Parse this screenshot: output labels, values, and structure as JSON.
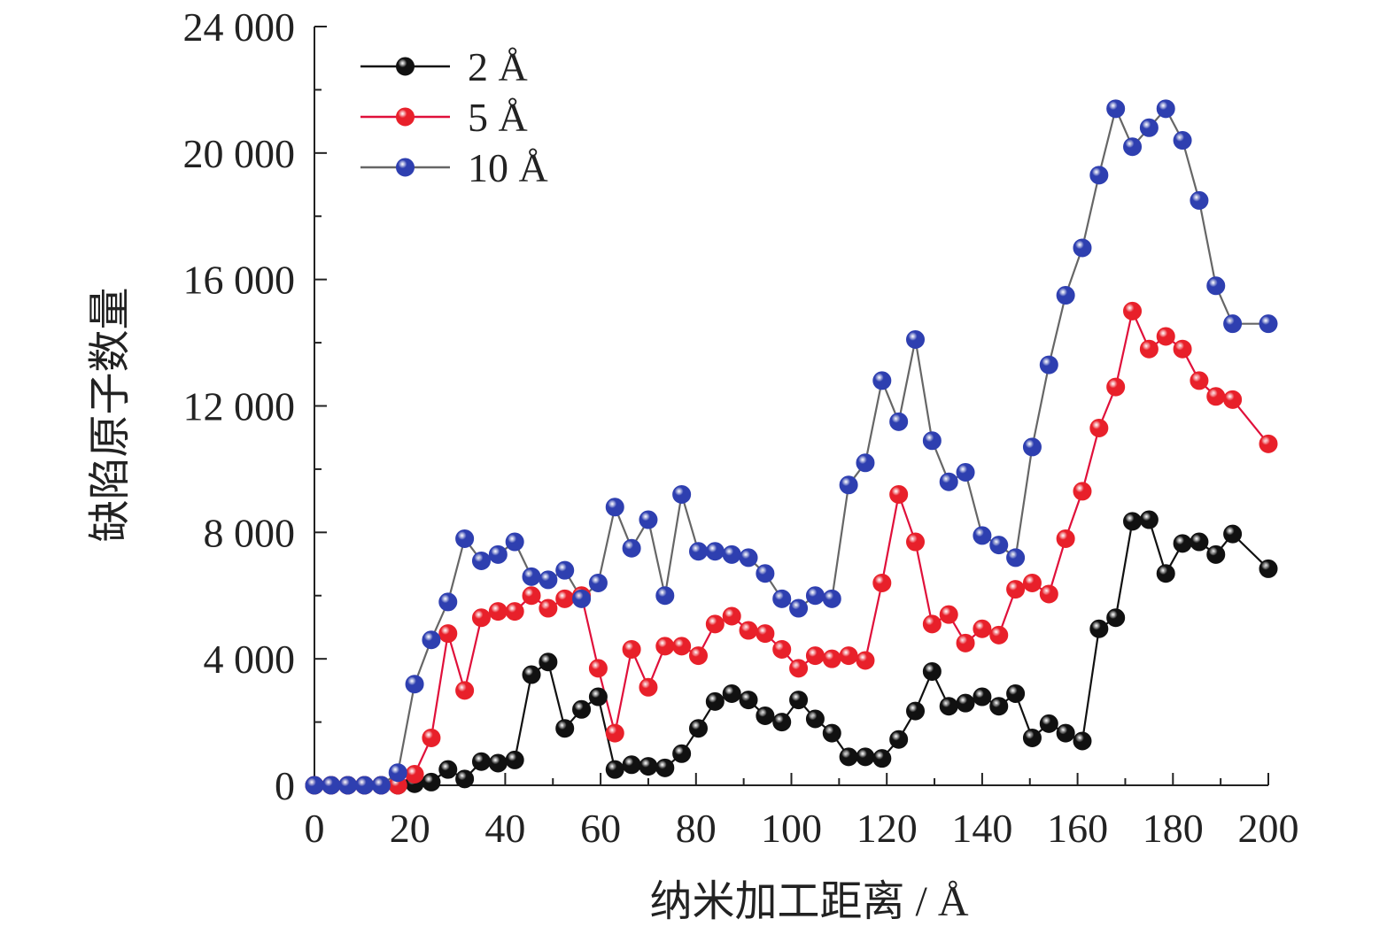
{
  "chart_data": {
    "type": "line",
    "title": "",
    "xlabel": "纳米加工距离 / Å",
    "ylabel": "缺陷原子数量",
    "xlim": [
      0,
      200
    ],
    "ylim": [
      0,
      24000
    ],
    "xticks": [
      0,
      20,
      40,
      60,
      80,
      100,
      120,
      140,
      160,
      180,
      200
    ],
    "yticks": [
      0,
      4000,
      8000,
      12000,
      16000,
      20000,
      24000
    ],
    "xtick_labels": [
      "0",
      "20",
      "40",
      "60",
      "80",
      "100",
      "120",
      "140",
      "160",
      "180",
      "200"
    ],
    "ytick_labels": [
      "0",
      "4 000",
      "8 000",
      "12 000",
      "16 000",
      "20 000",
      "24 000"
    ],
    "grid": false,
    "legend_position": "top-left",
    "x": [
      0,
      3.5,
      7,
      10.5,
      14,
      17.5,
      21,
      24.5,
      28,
      31.5,
      35,
      38.5,
      42,
      45.5,
      49,
      52.5,
      56,
      59.5,
      63,
      66.5,
      70,
      73.5,
      77,
      80.5,
      84,
      87.5,
      91,
      94.5,
      98,
      101.5,
      105,
      108.5,
      112,
      115.5,
      119,
      122.5,
      126,
      129.5,
      133,
      136.5,
      140,
      143.5,
      147,
      150.5,
      154,
      157.5,
      161,
      164.5,
      168,
      171.5,
      175,
      178.5,
      182,
      185.5,
      189,
      192.5,
      200
    ],
    "series": [
      {
        "name": "2 Å",
        "color": "#111111",
        "line_color": "#111111",
        "values": [
          0,
          0,
          0,
          0,
          0,
          0,
          50,
          100,
          500,
          200,
          750,
          700,
          800,
          3500,
          3900,
          1800,
          2400,
          2800,
          500,
          650,
          600,
          550,
          1000,
          1800,
          2650,
          2900,
          2700,
          2200,
          2000,
          2700,
          2100,
          1650,
          900,
          900,
          850,
          1450,
          2350,
          3600,
          2500,
          2600,
          2800,
          2500,
          2900,
          1500,
          1950,
          1650,
          1400,
          4950,
          5300,
          8350,
          8400,
          6700,
          7650,
          7700,
          7300,
          7950,
          6850
        ]
      },
      {
        "name": "5 Å",
        "color": "#e8202a",
        "line_color": "#e0103a",
        "values": [
          0,
          0,
          0,
          0,
          0,
          0,
          350,
          1500,
          4800,
          3000,
          5300,
          5500,
          5500,
          6000,
          5600,
          5900,
          6000,
          3700,
          1650,
          4300,
          3100,
          4400,
          4400,
          4100,
          5100,
          5350,
          4900,
          4800,
          4300,
          3700,
          4100,
          4000,
          4100,
          3950,
          6400,
          9200,
          7700,
          5100,
          5400,
          4500,
          4950,
          4750,
          6200,
          6400,
          6050,
          7800,
          9300,
          11300,
          12600,
          15000,
          13800,
          14200,
          13800,
          12800,
          12300,
          12200,
          10800
        ]
      },
      {
        "name": "10 Å",
        "color": "#2e3fb0",
        "line_color": "#666666",
        "values": [
          0,
          0,
          0,
          0,
          0,
          400,
          3200,
          4600,
          5800,
          7800,
          7100,
          7300,
          7700,
          6600,
          6500,
          6800,
          5900,
          6400,
          8800,
          7500,
          8400,
          6000,
          9200,
          7400,
          7400,
          7300,
          7200,
          6700,
          5900,
          5600,
          6000,
          5900,
          9500,
          10200,
          12800,
          11500,
          14100,
          10900,
          9600,
          9900,
          7900,
          7600,
          7200,
          10700,
          13300,
          15500,
          17000,
          19300,
          21400,
          20200,
          20800,
          21400,
          20400,
          18500,
          15800,
          14600,
          14600
        ]
      }
    ]
  }
}
